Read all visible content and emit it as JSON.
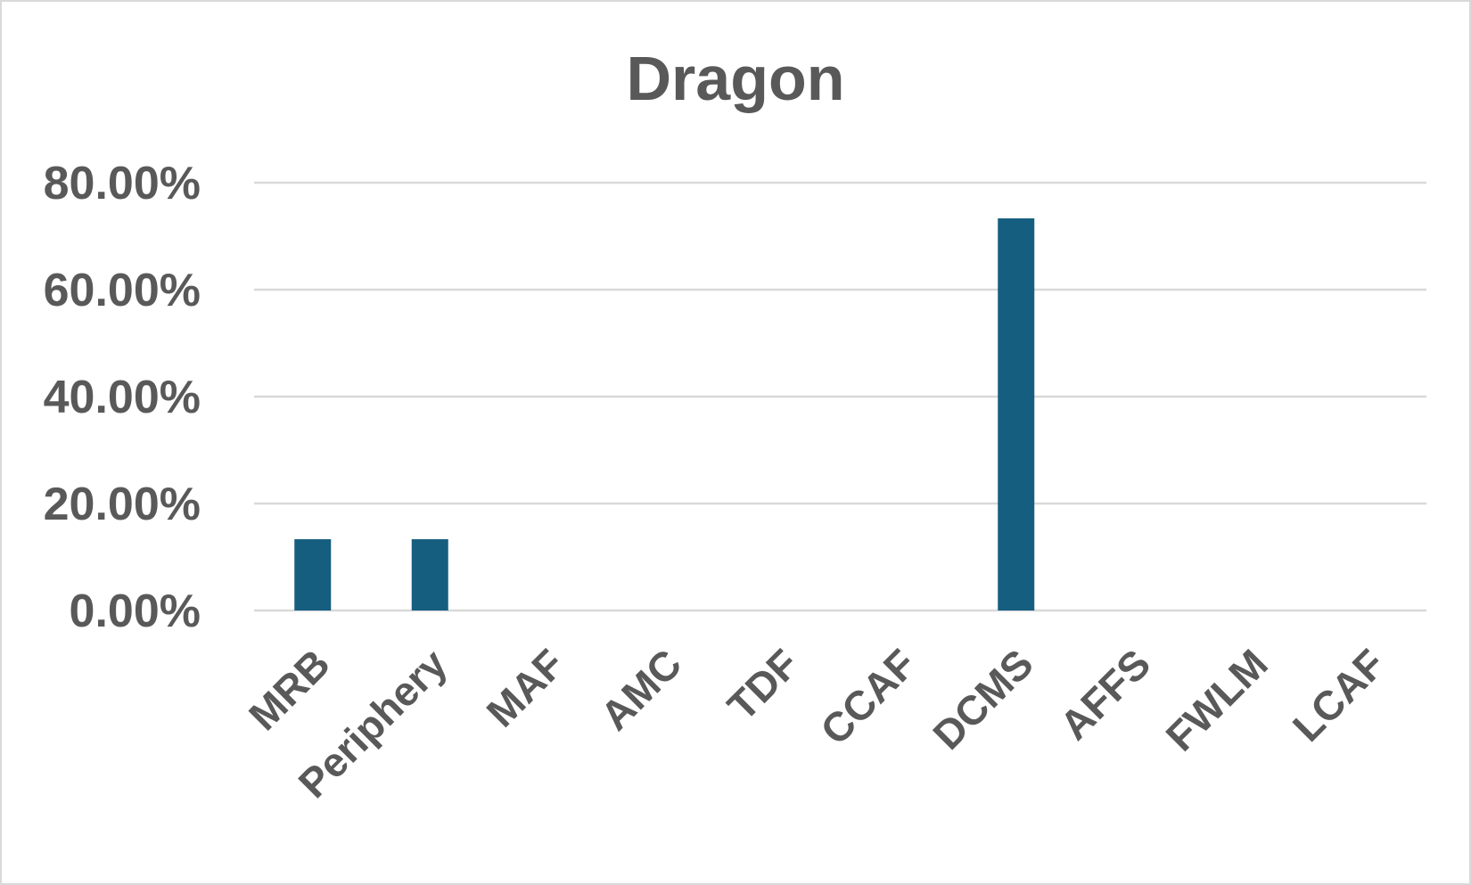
{
  "chart_data": {
    "type": "bar",
    "title": "Dragon",
    "xlabel": "",
    "ylabel": "",
    "categories": [
      "MRB",
      "Periphery",
      "MAF",
      "AMC",
      "TDF",
      "CCAF",
      "DCMS",
      "AFFS",
      "FWLM",
      "LCAF"
    ],
    "values": [
      13.33,
      13.33,
      0,
      0,
      0,
      0,
      73.33,
      0,
      0,
      0
    ],
    "ylim": [
      0,
      80
    ],
    "yticks": [
      0,
      20,
      40,
      60,
      80
    ],
    "ytick_labels": [
      "0.00%",
      "20.00%",
      "40.00%",
      "60.00%",
      "80.00%"
    ],
    "grid": true,
    "legend": "none",
    "colors": {
      "bar": "#165e80",
      "text": "#595959",
      "grid": "#d9d9d9",
      "border": "#d9d9d9"
    }
  }
}
